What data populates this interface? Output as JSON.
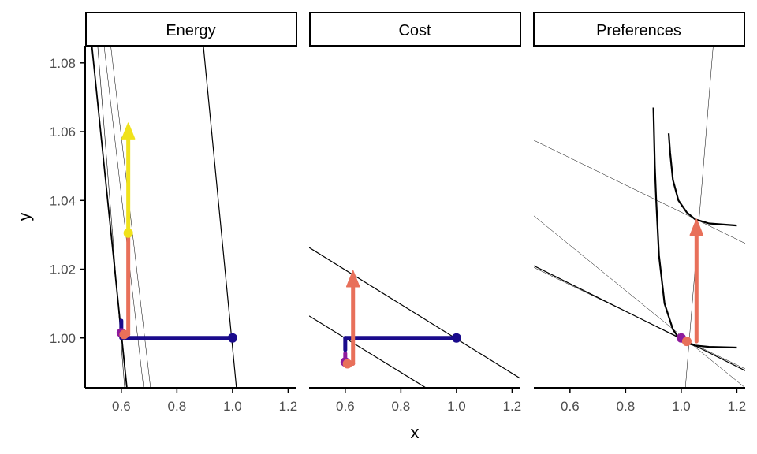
{
  "chart_data": {
    "type": "line",
    "xlabel": "x",
    "ylabel": "y",
    "xlim": [
      0.47,
      1.23
    ],
    "ylim": [
      0.9855,
      1.085
    ],
    "x_ticks": [
      0.6,
      0.8,
      1.0,
      1.2
    ],
    "x_tick_labels": [
      "0.6",
      "0.8",
      "1.0",
      "1.2"
    ],
    "y_ticks": [
      1.0,
      1.02,
      1.04,
      1.06,
      1.08
    ],
    "y_tick_labels": [
      "1.00",
      "1.02",
      "1.04",
      "1.06",
      "1.08"
    ],
    "grid": false,
    "colors": {
      "navy": "#1a0b8c",
      "purple": "#8e1b9c",
      "magenta": "#b02a90",
      "salmon": "#e8705a",
      "yellow": "#f0e21b",
      "line": "#000000"
    },
    "panels": [
      {
        "name": "Energy",
        "lines": [
          {
            "p1": [
              0.494,
              1.085
            ],
            "p2": [
              0.62,
              0.9855
            ],
            "width": 1.8
          },
          {
            "p1": [
              0.515,
              1.085
            ],
            "p2": [
              0.612,
              0.9855
            ],
            "width": 0.6
          },
          {
            "p1": [
              0.538,
              1.085
            ],
            "p2": [
              0.68,
              0.9855
            ],
            "width": 0.5
          },
          {
            "p1": [
              0.562,
              1.085
            ],
            "p2": [
              0.705,
              0.9855
            ],
            "width": 0.5
          },
          {
            "p1": [
              0.895,
              1.085
            ],
            "p2": [
              1.014,
              0.9855
            ],
            "width": 1.2
          }
        ],
        "curves": [],
        "segments": [
          {
            "from": [
              1.0,
              1.0
            ],
            "to": [
              0.6,
              1.0
            ],
            "color": "navy",
            "width": 5
          },
          {
            "from": [
              0.6,
              1.0
            ],
            "to": [
              0.6,
              1.005
            ],
            "color": "navy",
            "width": 5
          },
          {
            "from": [
              0.6,
              1.001
            ],
            "to": [
              0.625,
              1.001
            ],
            "color": "magenta",
            "width": 5
          },
          {
            "from": [
              0.625,
              1.001
            ],
            "to": [
              0.625,
              1.0305
            ],
            "color": "salmon",
            "width": 5
          }
        ],
        "arrows": [
          {
            "from": [
              0.625,
              1.0305
            ],
            "to": [
              0.625,
              1.0625
            ],
            "color": "yellow"
          }
        ],
        "points": [
          {
            "at": [
              1.0,
              1.0
            ],
            "color": "navy"
          },
          {
            "at": [
              0.6,
              1.0015
            ],
            "color": "purple"
          },
          {
            "at": [
              0.61,
              1.001
            ],
            "color": "salmon"
          },
          {
            "at": [
              0.625,
              1.0305
            ],
            "color": "yellow"
          }
        ]
      },
      {
        "name": "Cost",
        "lines": [
          {
            "p1": [
              0.47,
              1.0263
            ],
            "p2": [
              1.23,
              0.9882
            ],
            "width": 1.2
          },
          {
            "p1": [
              0.47,
              1.0064
            ],
            "p2": [
              0.89,
              0.9855
            ],
            "width": 1.2
          }
        ],
        "curves": [],
        "segments": [
          {
            "from": [
              1.0,
              1.0
            ],
            "to": [
              0.6,
              1.0
            ],
            "color": "navy",
            "width": 5
          },
          {
            "from": [
              0.6,
              1.0
            ],
            "to": [
              0.6,
              0.9965
            ],
            "color": "navy",
            "width": 5
          },
          {
            "from": [
              0.6,
              0.9955
            ],
            "to": [
              0.6,
              0.9935
            ],
            "color": "purple",
            "width": 5
          },
          {
            "from": [
              0.6,
              0.9935
            ],
            "to": [
              0.628,
              0.9925
            ],
            "color": "magenta",
            "width": 5
          }
        ],
        "arrows": [
          {
            "from": [
              0.628,
              0.9925
            ],
            "to": [
              0.628,
              1.0195
            ],
            "color": "salmon"
          }
        ],
        "points": [
          {
            "at": [
              1.0,
              1.0
            ],
            "color": "navy"
          },
          {
            "at": [
              0.6,
              0.993
            ],
            "color": "purple"
          },
          {
            "at": [
              0.608,
              0.9925
            ],
            "color": "salmon"
          }
        ]
      },
      {
        "name": "Preferences",
        "lines": [
          {
            "p1": [
              0.47,
              1.0575
            ],
            "p2": [
              1.23,
              1.0275
            ],
            "width": 0.5
          },
          {
            "p1": [
              0.47,
              1.0355
            ],
            "p2": [
              1.23,
              0.9855
            ],
            "width": 0.5
          },
          {
            "p1": [
              0.47,
              1.021
            ],
            "p2": [
              1.23,
              0.9905
            ],
            "width": 1.2
          },
          {
            "p1": [
              0.47,
              1.0205
            ],
            "p2": [
              1.23,
              0.991
            ],
            "width": 0.5
          },
          {
            "p1": [
              1.015,
              0.9855
            ],
            "p2": [
              1.115,
              1.085
            ],
            "width": 0.5
          }
        ],
        "curves": [
          {
            "points": [
              [
                0.9,
                1.067
              ],
              [
                0.905,
                1.05
              ],
              [
                0.91,
                1.04
              ],
              [
                0.92,
                1.024
              ],
              [
                0.94,
                1.01
              ],
              [
                0.97,
                1.0025
              ],
              [
                1.0,
                0.999
              ],
              [
                1.05,
                0.9978
              ],
              [
                1.1,
                0.9974
              ],
              [
                1.2,
                0.9972
              ]
            ],
            "width": 2.2
          },
          {
            "points": [
              [
                0.955,
                1.0595
              ],
              [
                0.96,
                1.054
              ],
              [
                0.97,
                1.046
              ],
              [
                0.99,
                1.04
              ],
              [
                1.02,
                1.0365
              ],
              [
                1.05,
                1.0345
              ],
              [
                1.1,
                1.0333
              ],
              [
                1.2,
                1.0327
              ]
            ],
            "width": 2.2
          }
        ],
        "segments": [],
        "arrows": [
          {
            "from": [
              1.055,
              0.999
            ],
            "to": [
              1.055,
              1.0345
            ],
            "color": "salmon"
          }
        ],
        "points": [
          {
            "at": [
              1.0,
              1.0
            ],
            "color": "purple"
          },
          {
            "at": [
              1.02,
              0.999
            ],
            "color": "salmon"
          }
        ]
      }
    ]
  }
}
